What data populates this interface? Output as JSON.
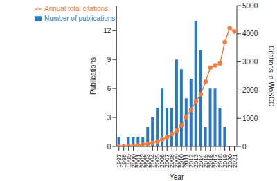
{
  "chart_data": {
    "type": "bar",
    "x_label": "Year",
    "y_label": "Publications",
    "y2_label": "Citations in WoSCC",
    "categories": [
      "1997",
      "1998",
      "1999",
      "2000",
      "2001",
      "2002",
      "2003",
      "2004",
      "2005",
      "2006",
      "2007",
      "2008",
      "2009",
      "2010",
      "2011",
      "2012",
      "2013",
      "2014",
      "2015",
      "2016",
      "2017",
      "2018",
      "2019",
      "2020",
      "2021"
    ],
    "series": [
      {
        "name": "Number of publications",
        "type": "bar",
        "color": "#2878c8",
        "values": [
          1,
          0,
          1,
          1,
          1,
          1,
          2,
          3,
          4,
          6,
          4,
          4,
          9,
          8,
          5,
          7,
          13,
          10,
          2,
          6,
          6,
          4,
          2,
          0,
          0
        ]
      },
      {
        "name": "Annual total citations",
        "type": "line",
        "axis": "y2",
        "color": "#f47c3c",
        "marker": "circle",
        "values": [
          0,
          0,
          10,
          20,
          40,
          60,
          90,
          130,
          180,
          250,
          330,
          440,
          560,
          750,
          1050,
          1300,
          1600,
          1850,
          2300,
          2800,
          2880,
          2950,
          3700,
          4200,
          4080
        ]
      }
    ],
    "ylim": [
      0,
      14.6
    ],
    "yticks": [
      0,
      3,
      6,
      9,
      12
    ],
    "y2lim": [
      0,
      5000
    ],
    "y2ticks": [
      0,
      1000,
      2000,
      3000,
      4000,
      5000
    ],
    "legend": "upper left",
    "grid": false
  }
}
